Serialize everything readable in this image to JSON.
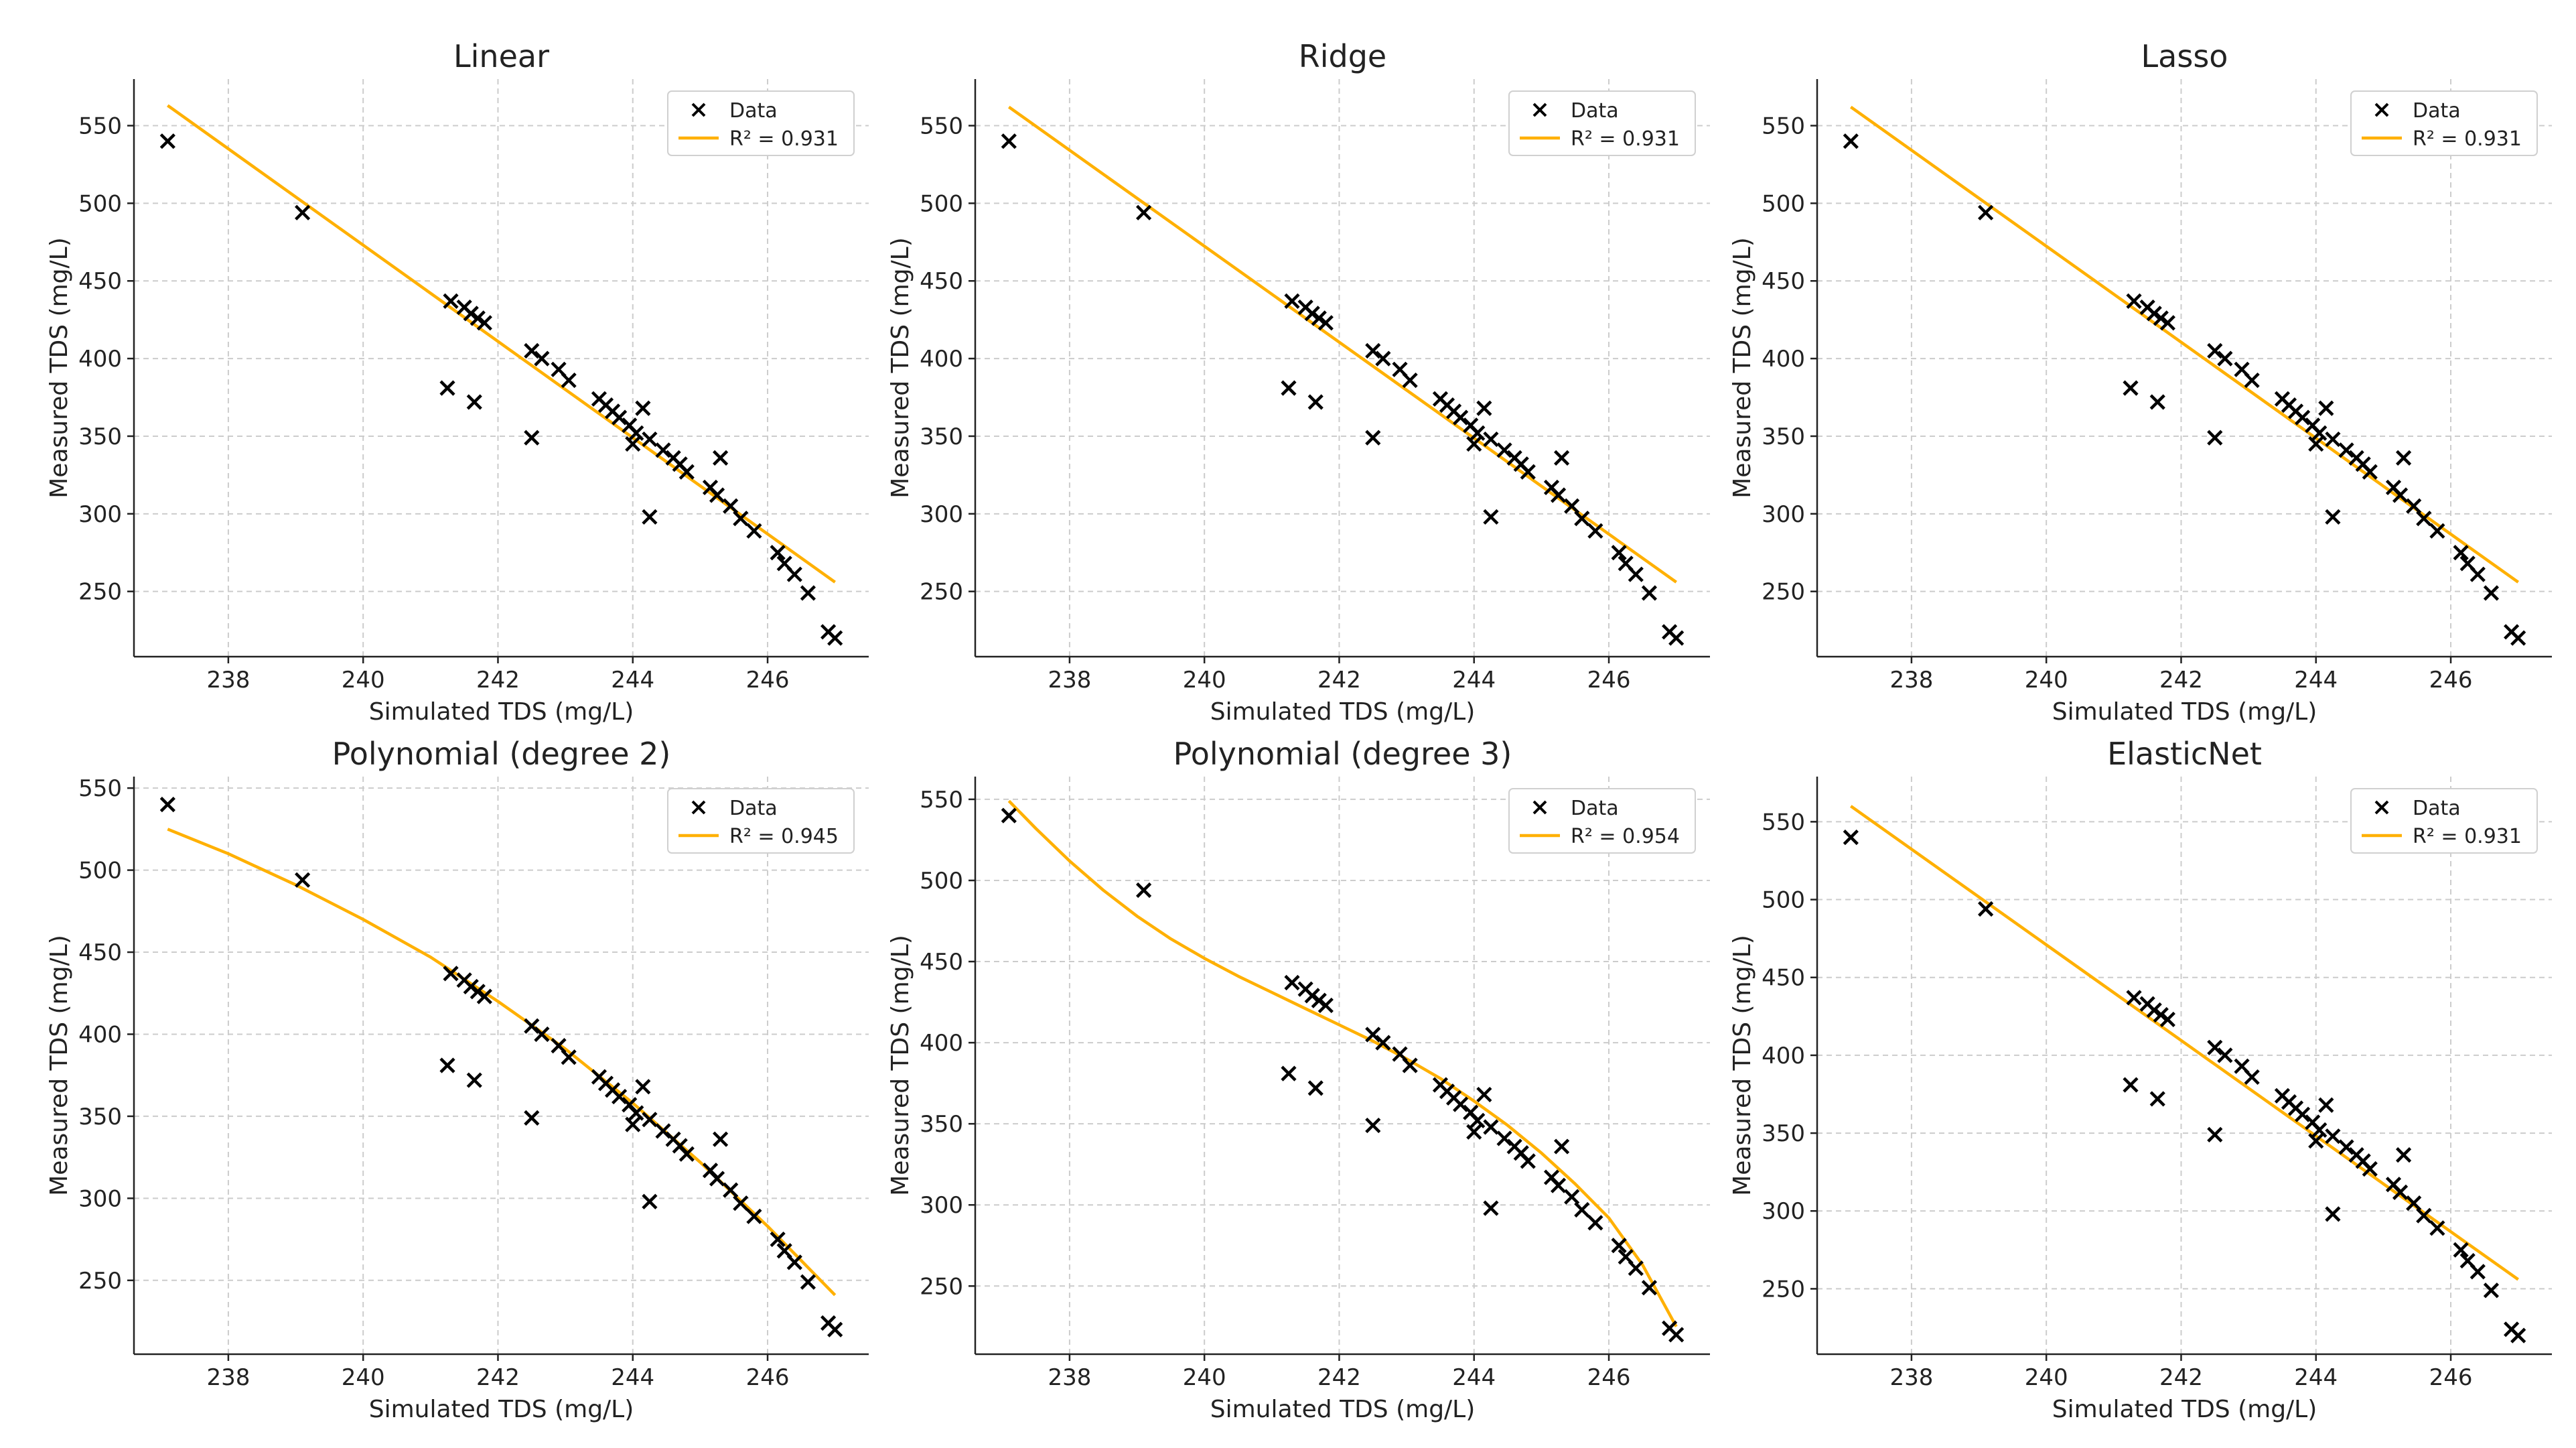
{
  "colors": {
    "data": "#000000",
    "fit": "#FFB000",
    "grid": "#cccccc",
    "axis": "#222222"
  },
  "shared": {
    "x": [
      237.1,
      239.1,
      241.3,
      241.5,
      241.6,
      241.7,
      241.8,
      241.25,
      241.65,
      242.5,
      242.65,
      242.9,
      243.05,
      242.5,
      243.5,
      243.6,
      243.7,
      243.8,
      243.95,
      244.05,
      244.15,
      244.0,
      244.25,
      244.45,
      244.6,
      244.7,
      244.8,
      245.15,
      245.25,
      245.3,
      244.25,
      245.45,
      245.6,
      245.8,
      246.15,
      246.25,
      246.4,
      246.6,
      246.9,
      247.0
    ],
    "y": [
      540,
      494,
      437,
      433,
      429,
      426,
      423,
      381,
      372,
      405,
      400,
      393,
      386,
      349,
      374,
      370,
      366,
      362,
      357,
      352,
      368,
      345,
      348,
      341,
      336,
      332,
      327,
      317,
      312,
      336,
      298,
      305,
      297,
      289,
      275,
      268,
      261,
      249,
      224,
      220
    ],
    "legend_data": "Data",
    "xlabel": "Simulated TDS (mg/L)",
    "ylabel": "Measured TDS (mg/L)",
    "xlim": [
      236.6,
      247.5
    ],
    "xticks": [
      238,
      240,
      242,
      244,
      246
    ],
    "xtick_labels": [
      "238",
      "240",
      "242",
      "244",
      "246"
    ]
  },
  "chart_data": [
    {
      "type": "scatter",
      "title": "Linear",
      "legend_fit": "R² = 0.931",
      "ylim": [
        208,
        580
      ],
      "yticks": [
        250,
        300,
        350,
        400,
        450,
        500,
        550
      ],
      "ytick_labels": [
        "250",
        "300",
        "350",
        "400",
        "450",
        "500",
        "550"
      ],
      "fit_x": [
        237.1,
        247.0
      ],
      "fit_y": [
        563,
        256
      ]
    },
    {
      "type": "scatter",
      "title": "Ridge",
      "legend_fit": "R² = 0.931",
      "ylim": [
        208,
        580
      ],
      "yticks": [
        250,
        300,
        350,
        400,
        450,
        500,
        550
      ],
      "ytick_labels": [
        "250",
        "300",
        "350",
        "400",
        "450",
        "500",
        "550"
      ],
      "fit_x": [
        237.1,
        247.0
      ],
      "fit_y": [
        562,
        256
      ]
    },
    {
      "type": "scatter",
      "title": "Lasso",
      "legend_fit": "R² = 0.931",
      "ylim": [
        208,
        580
      ],
      "yticks": [
        250,
        300,
        350,
        400,
        450,
        500,
        550
      ],
      "ytick_labels": [
        "250",
        "300",
        "350",
        "400",
        "450",
        "500",
        "550"
      ],
      "fit_x": [
        237.1,
        247.0
      ],
      "fit_y": [
        562,
        256
      ]
    },
    {
      "type": "scatter",
      "title": "Polynomial (degree 2)",
      "legend_fit": "R² = 0.945",
      "ylim": [
        205,
        557
      ],
      "yticks": [
        250,
        300,
        350,
        400,
        450,
        500,
        550
      ],
      "ytick_labels": [
        "250",
        "300",
        "350",
        "400",
        "450",
        "500",
        "550"
      ],
      "fit_x": [
        237.1,
        238.0,
        239.0,
        240.0,
        241.0,
        242.0,
        243.0,
        244.0,
        245.0,
        246.0,
        247.0
      ],
      "fit_y": [
        525,
        510,
        491,
        470,
        447,
        420,
        391,
        358,
        322,
        283,
        241
      ]
    },
    {
      "type": "scatter",
      "title": "Polynomial (degree 3)",
      "legend_fit": "R² = 0.954",
      "ylim": [
        208,
        564
      ],
      "yticks": [
        250,
        300,
        350,
        400,
        450,
        500,
        550
      ],
      "ytick_labels": [
        "250",
        "300",
        "350",
        "400",
        "450",
        "500",
        "550"
      ],
      "fit_x": [
        237.1,
        237.5,
        238.0,
        238.5,
        239.0,
        239.5,
        240.0,
        240.5,
        241.0,
        241.5,
        242.0,
        242.5,
        243.0,
        243.5,
        244.0,
        244.5,
        245.0,
        245.5,
        246.0,
        246.5,
        247.0
      ],
      "fit_y": [
        549,
        532,
        512,
        494,
        478,
        464,
        452,
        441,
        431,
        421,
        411,
        401,
        390,
        378,
        364,
        349,
        332,
        313,
        292,
        263,
        225
      ]
    },
    {
      "type": "scatter",
      "title": "ElasticNet",
      "legend_fit": "R² = 0.931",
      "ylim": [
        208,
        579
      ],
      "yticks": [
        250,
        300,
        350,
        400,
        450,
        500,
        550
      ],
      "ytick_labels": [
        "250",
        "300",
        "350",
        "400",
        "450",
        "500",
        "550"
      ],
      "fit_x": [
        237.1,
        247.0
      ],
      "fit_y": [
        560,
        256
      ]
    }
  ]
}
